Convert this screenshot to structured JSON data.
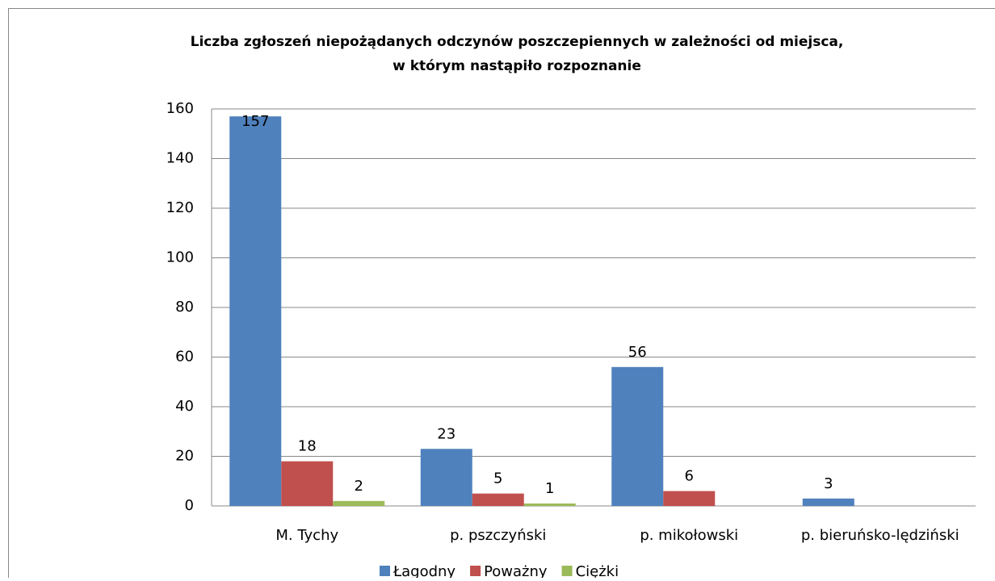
{
  "chart_data": {
    "type": "bar",
    "title": [
      "Liczba zgłoszeń niepożądanych  odczynów poszczepiennych  w zależności  od miejsca,",
      "w którym nastąpiło  rozpoznanie"
    ],
    "categories": [
      "M. Tychy",
      "p. pszczyński",
      "p. mikołowski",
      "p. bieruńsko-lędziński"
    ],
    "series": [
      {
        "name": "Łagodny",
        "color": "#4f81bd",
        "values": [
          157,
          23,
          56,
          3
        ]
      },
      {
        "name": "Poważny",
        "color": "#c0504d",
        "values": [
          18,
          5,
          6,
          null
        ]
      },
      {
        "name": "Ciężki",
        "color": "#9bbb59",
        "values": [
          2,
          1,
          null,
          null
        ]
      }
    ],
    "ylim": [
      0,
      160
    ],
    "yticks": [
      0,
      20,
      40,
      60,
      80,
      100,
      120,
      140,
      160
    ],
    "grid": true,
    "legend": "bottom"
  }
}
